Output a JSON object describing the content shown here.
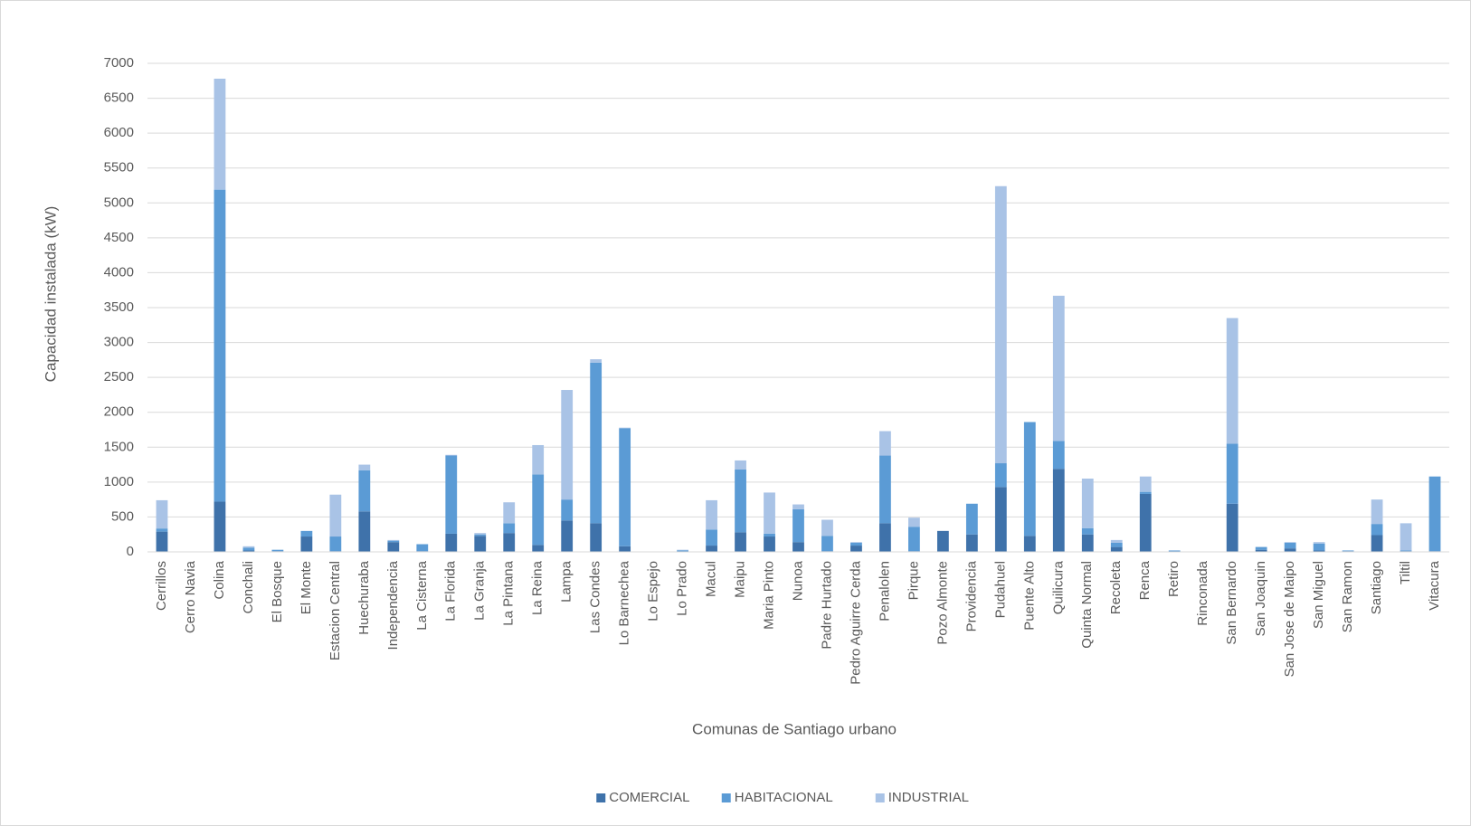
{
  "chart_data": {
    "type": "stacked-bar",
    "x_label": "Comunas de Santiago urbano",
    "y_label": "Capacidad instalada (kW)",
    "categories": [
      "Cerrillos",
      "Cerro Navia",
      "Colina",
      "Conchali",
      "El Bosque",
      "El Monte",
      "Estacion Central",
      "Huechuraba",
      "Independencia",
      "La Cisterna",
      "La Florida",
      "La Granja",
      "La Pintana",
      "La Reina",
      "Lampa",
      "Las Condes",
      "Lo Barnechea",
      "Lo Espejo",
      "Lo Prado",
      "Macul",
      "Maipu",
      "Maria Pinto",
      "Nunoa",
      "Padre Hurtado",
      "Pedro Aguirre Cerda",
      "Penalolen",
      "Pirque",
      "Pozo Almonte",
      "Providencia",
      "Pudahuel",
      "Puente Alto",
      "Quilicura",
      "Quinta Normal",
      "Recoleta",
      "Renca",
      "Retiro",
      "Rinconada",
      "San Bernardo",
      "San Joaquin",
      "San Jose de Maipo",
      "San Miguel",
      "San Ramon",
      "Santiago",
      "Tiltil",
      "Vitacura"
    ],
    "series": [
      {
        "name": "COMERCIAL",
        "color": "#3f72aa",
        "values": [
          290,
          0,
          720,
          20,
          10,
          220,
          10,
          580,
          140,
          10,
          260,
          230,
          270,
          100,
          450,
          410,
          80,
          0,
          0,
          90,
          280,
          220,
          140,
          10,
          90,
          410,
          10,
          300,
          250,
          930,
          230,
          1190,
          250,
          70,
          830,
          0,
          0,
          690,
          30,
          50,
          20,
          10,
          240,
          10,
          10
        ]
      },
      {
        "name": "HABITACIONAL",
        "color": "#5b9bd5",
        "values": [
          45,
          0,
          4470,
          40,
          20,
          80,
          210,
          590,
          20,
          100,
          1120,
          20,
          140,
          1010,
          300,
          2300,
          1690,
          0,
          20,
          230,
          900,
          40,
          470,
          220,
          40,
          970,
          350,
          0,
          440,
          340,
          1630,
          400,
          90,
          60,
          30,
          20,
          0,
          860,
          40,
          80,
          100,
          10,
          160,
          10,
          1070
        ]
      },
      {
        "name": "INDUSTRIAL",
        "color": "#a9c3e6",
        "values": [
          405,
          0,
          1590,
          20,
          0,
          0,
          600,
          80,
          10,
          0,
          10,
          20,
          300,
          420,
          1570,
          50,
          10,
          0,
          10,
          420,
          130,
          590,
          70,
          230,
          10,
          350,
          130,
          0,
          0,
          3970,
          0,
          2080,
          710,
          40,
          220,
          0,
          0,
          1800,
          0,
          10,
          20,
          0,
          350,
          390,
          0
        ]
      }
    ],
    "ylim": [
      0,
      7000
    ],
    "yticks": [
      0,
      500,
      1000,
      1500,
      2000,
      2500,
      3000,
      3500,
      4000,
      4500,
      5000,
      5500,
      6000,
      6500,
      7000
    ],
    "grid": true,
    "legend": "bottom"
  }
}
